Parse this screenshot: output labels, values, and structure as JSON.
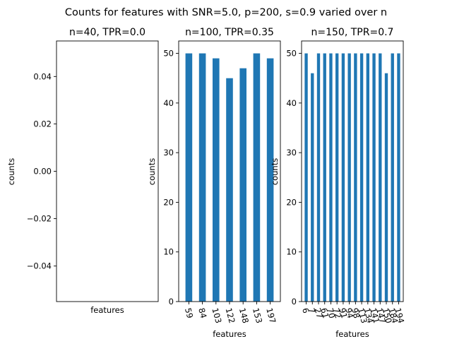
{
  "figure": {
    "suptitle": "Counts for features with SNR=5.0, p=200, s=0.9 varied over n",
    "bar_color": "#1f77b4"
  },
  "chart_data": [
    {
      "type": "bar",
      "title": "n=40, TPR=0.0",
      "xlabel": "features",
      "ylabel": "counts",
      "categories": [],
      "values": [],
      "ylim": [
        -0.055,
        0.055
      ],
      "yticks": [
        -0.04,
        -0.02,
        0.0,
        0.02,
        0.04
      ],
      "ytick_labels": [
        "−0.04",
        "−0.02",
        "0.00",
        "0.02",
        "0.04"
      ],
      "xtick_rotation": 0,
      "grid": false,
      "legend": "none"
    },
    {
      "type": "bar",
      "title": "n=100, TPR=0.35",
      "xlabel": "features",
      "ylabel": "counts",
      "categories": [
        "59",
        "84",
        "103",
        "122",
        "148",
        "153",
        "197"
      ],
      "values": [
        50,
        50,
        49,
        45,
        47,
        50,
        49
      ],
      "ylim": [
        0,
        52.5
      ],
      "yticks": [
        0,
        10,
        20,
        30,
        40,
        50
      ],
      "ytick_labels": [
        "0",
        "10",
        "20",
        "30",
        "40",
        "50"
      ],
      "xtick_rotation": -75,
      "grid": false,
      "legend": "none"
    },
    {
      "type": "bar",
      "title": "n=150, TPR=0.7",
      "xlabel": "features",
      "ylabel": "counts",
      "categories": [
        "6",
        "7",
        "27",
        "61",
        "70",
        "72",
        "91",
        "94",
        "98",
        "113",
        "134",
        "141",
        "147",
        "150",
        "184",
        "194"
      ],
      "values": [
        50,
        46,
        50,
        50,
        50,
        50,
        50,
        50,
        50,
        50,
        50,
        50,
        50,
        46,
        50,
        50
      ],
      "ylim": [
        0,
        52.5
      ],
      "yticks": [
        0,
        10,
        20,
        30,
        40,
        50
      ],
      "ytick_labels": [
        "0",
        "10",
        "20",
        "30",
        "40",
        "50"
      ],
      "xtick_rotation": -75,
      "grid": false,
      "legend": "none"
    }
  ]
}
